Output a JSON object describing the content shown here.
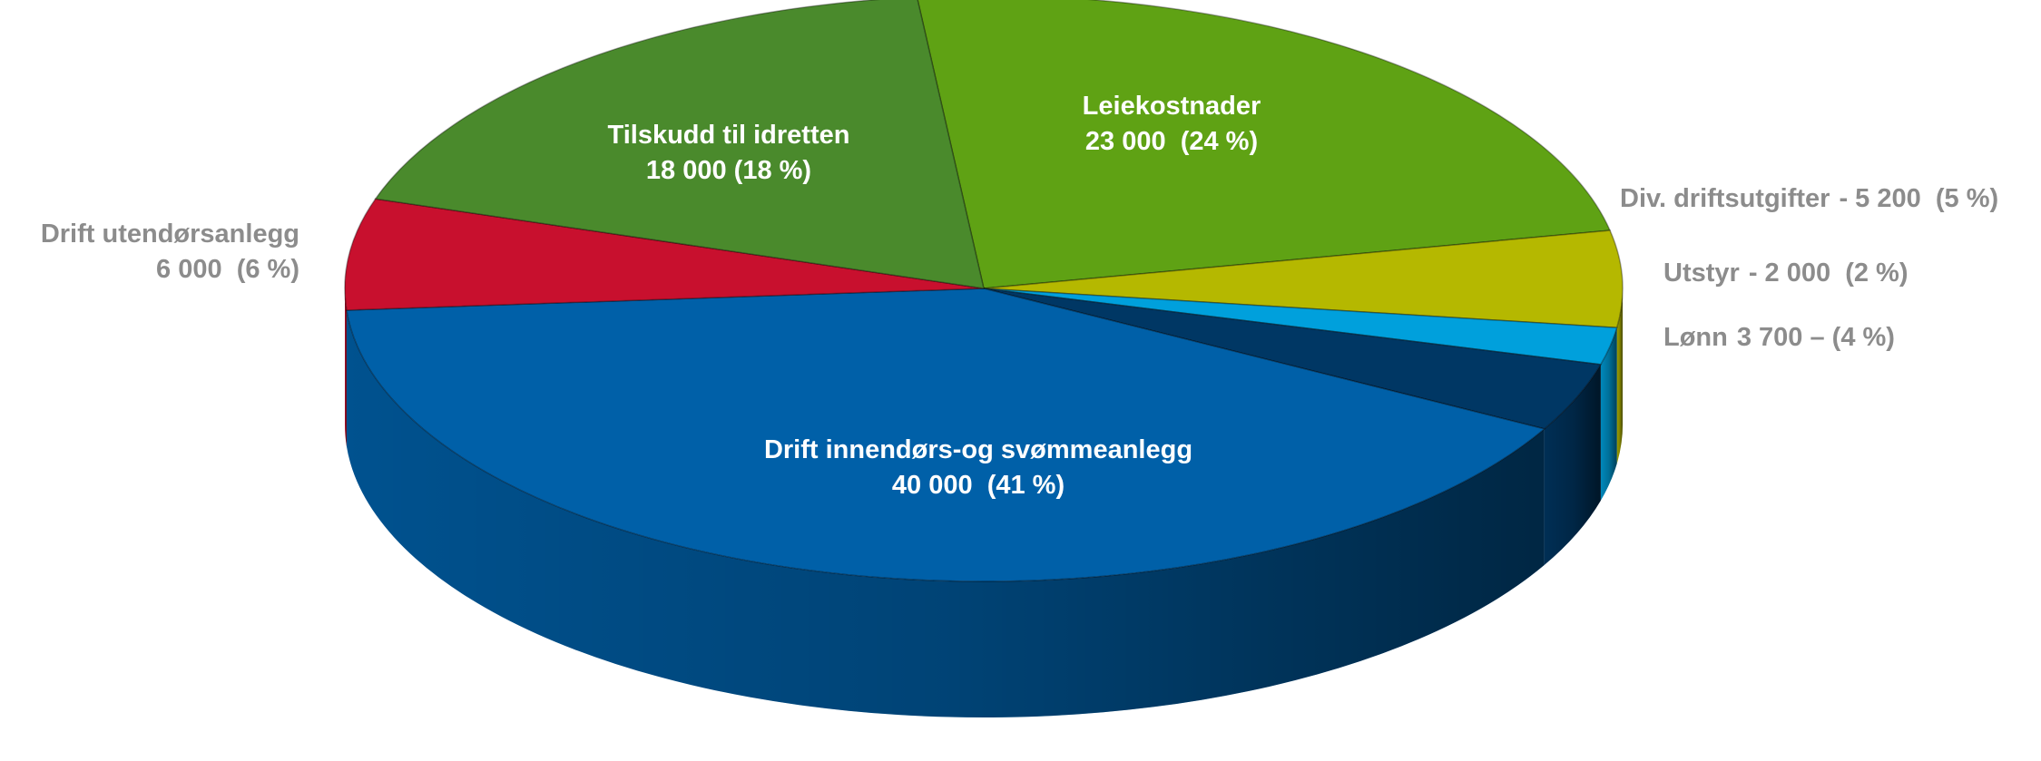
{
  "chart_data": {
    "type": "pie3d",
    "categories": [
      "Leiekostnader",
      "Div. driftsutgifter",
      "Utstyr",
      "Lønn",
      "Drift innendørs-og svømmeanlegg",
      "Drift utendørsanlegg",
      "Tilskudd til idretten"
    ],
    "values": [
      23000,
      5200,
      2000,
      3700,
      40000,
      6000,
      18000
    ],
    "value_labels": [
      "23 000  (24 %)",
      "- 5 200  (5 %)",
      "- 2 000  (2 %)",
      "3 700 – (4 %)",
      "40 000  (41 %)",
      "6 000  (6 %)",
      "18 000 (18 %)"
    ],
    "colors": [
      "#5fa214",
      "#b5b800",
      "#00a0dc",
      "#003764",
      "#0060a8",
      "#c8102e",
      "#4a8a2c"
    ]
  }
}
